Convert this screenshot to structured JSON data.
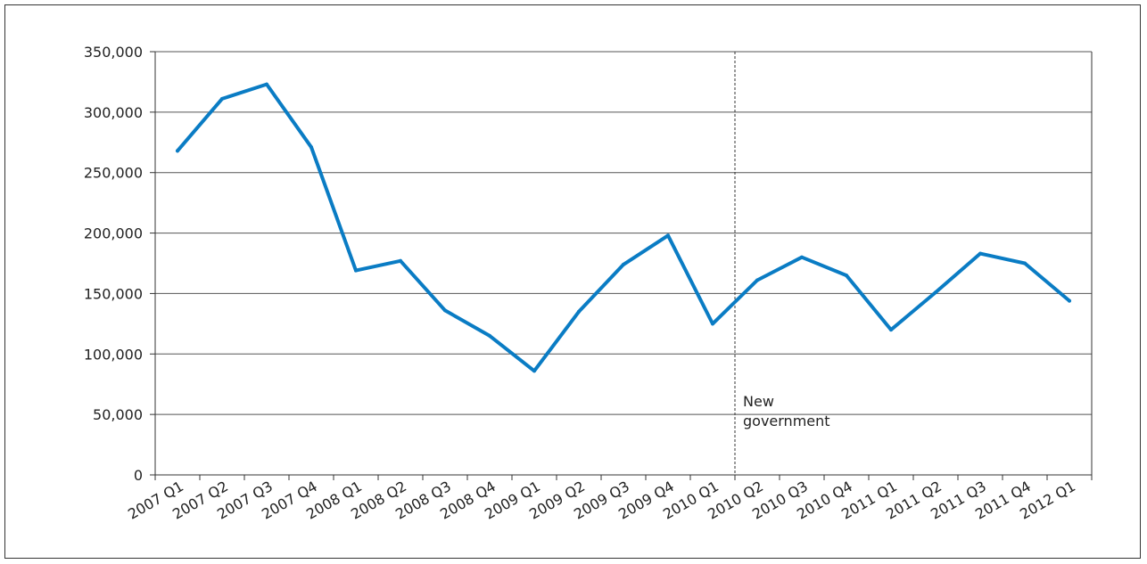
{
  "chart_data": {
    "type": "line",
    "title": "",
    "xlabel": "",
    "ylabel": "",
    "categories": [
      "2007 Q1",
      "2007 Q2",
      "2007 Q3",
      "2007 Q4",
      "2008 Q1",
      "2008 Q2",
      "2008 Q3",
      "2008 Q4",
      "2009 Q1",
      "2009 Q2",
      "2009 Q3",
      "2009 Q4",
      "2010 Q1",
      "2010 Q2",
      "2010 Q3",
      "2010 Q4",
      "2011 Q1",
      "2011 Q2",
      "2011 Q3",
      "2011 Q4",
      "2012 Q1"
    ],
    "series": [
      {
        "values": [
          268000,
          311000,
          323000,
          271000,
          169000,
          177000,
          136000,
          115000,
          86000,
          135000,
          174000,
          198000,
          125000,
          161000,
          180000,
          165000,
          120000,
          151000,
          183000,
          175000,
          144000
        ],
        "color": "#0a7cc4"
      }
    ],
    "ylim": [
      0,
      350000
    ],
    "yticks": [
      0,
      50000,
      100000,
      150000,
      200000,
      250000,
      300000,
      350000
    ],
    "ytick_labels": [
      "0",
      "50,000",
      "100,000",
      "150,000",
      "200,000",
      "250,000",
      "300,000",
      "350,000"
    ],
    "grid": true,
    "annotation": {
      "category_boundary": [
        "2010 Q1",
        "2010 Q2"
      ],
      "label_lines": [
        "New",
        "government"
      ],
      "line_style": "dashed"
    }
  }
}
